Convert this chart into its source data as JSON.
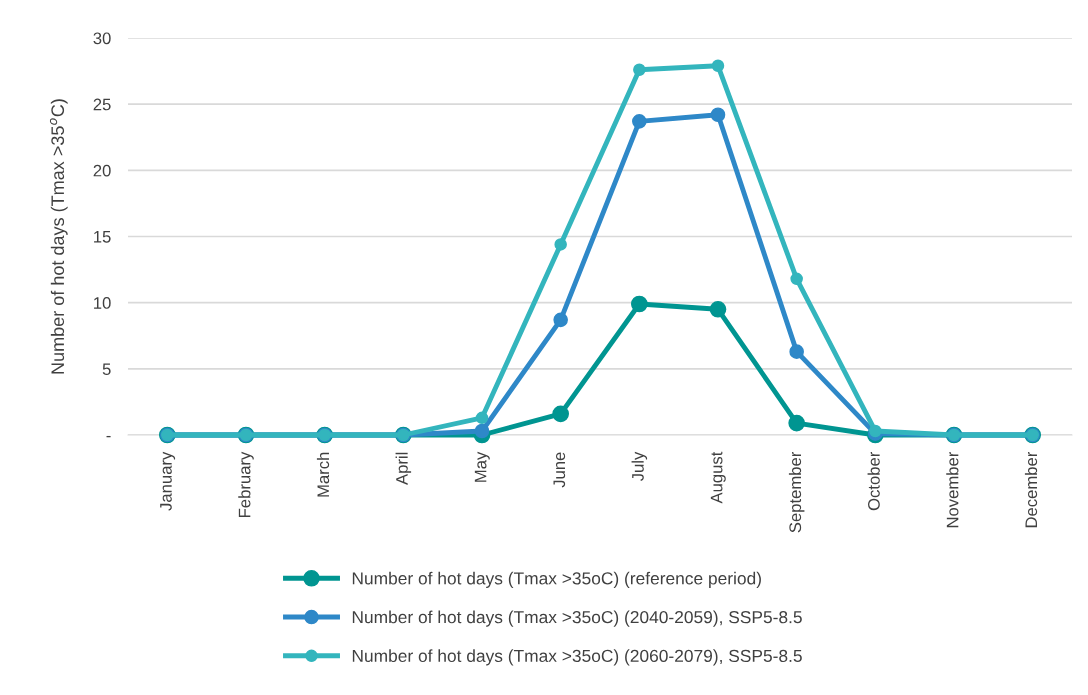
{
  "chart_data": {
    "type": "line",
    "ylabel": "Number of hot days (Tmax >35$^{o}$C)",
    "categories": [
      "January",
      "February",
      "March",
      "April",
      "May",
      "June",
      "July",
      "August",
      "September",
      "October",
      "November",
      "December"
    ],
    "series": [
      {
        "name": "Number of hot days (Tmax >35oC) (reference period)",
        "color": "#009591",
        "values": [
          0,
          0,
          0,
          0,
          0,
          1.6,
          9.9,
          9.5,
          0.9,
          0,
          0,
          0
        ]
      },
      {
        "name": "Number of hot days (Tmax >35oC) (2040-2059), SSP5-8.5",
        "color": "#2e88c8",
        "values": [
          0,
          0,
          0,
          0,
          0.3,
          8.7,
          23.7,
          24.2,
          6.3,
          0.1,
          0,
          0
        ]
      },
      {
        "name": "Number of hot days (Tmax >35oC) (2060-2079), SSP5-8.5",
        "color": "#33b5bd",
        "values": [
          0,
          0,
          0,
          0,
          1.3,
          14.4,
          27.6,
          27.9,
          11.8,
          0.3,
          0,
          0
        ]
      }
    ],
    "ylim": [
      0,
      30
    ],
    "yticks": [
      {
        "value": 0,
        "label": "-"
      },
      5,
      10,
      15,
      20,
      25,
      30
    ],
    "grid": "y",
    "legend": "bottom",
    "marker": "circle",
    "line_style": "solid"
  }
}
